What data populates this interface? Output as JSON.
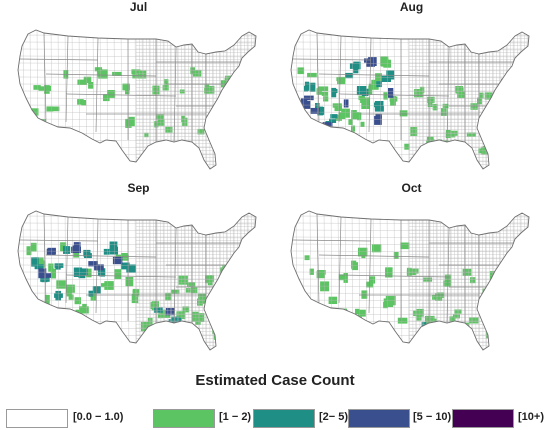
{
  "panels": [
    {
      "title": "Jul",
      "hotspots": [
        {
          "level": 1,
          "points": [
            [
              0.08,
              0.4
            ],
            [
              0.11,
              0.42
            ],
            [
              0.14,
              0.52
            ],
            [
              0.06,
              0.57
            ],
            [
              0.09,
              0.63
            ],
            [
              0.2,
              0.3
            ],
            [
              0.24,
              0.36
            ],
            [
              0.27,
              0.33
            ],
            [
              0.31,
              0.4
            ],
            [
              0.36,
              0.44
            ],
            [
              0.26,
              0.48
            ],
            [
              0.33,
              0.28
            ],
            [
              0.4,
              0.3
            ],
            [
              0.45,
              0.37
            ],
            [
              0.49,
              0.31
            ],
            [
              0.55,
              0.42
            ],
            [
              0.61,
              0.38
            ],
            [
              0.67,
              0.45
            ],
            [
              0.72,
              0.3
            ],
            [
              0.79,
              0.41
            ],
            [
              0.83,
              0.36
            ],
            [
              0.86,
              0.32
            ],
            [
              0.89,
              0.48
            ],
            [
              0.57,
              0.62
            ],
            [
              0.63,
              0.66
            ],
            [
              0.69,
              0.6
            ],
            [
              0.46,
              0.64
            ],
            [
              0.75,
              0.7
            ],
            [
              0.52,
              0.73
            ]
          ]
        }
      ]
    },
    {
      "title": "Aug",
      "hotspots": [
        {
          "level": 1,
          "points": [
            [
              0.05,
              0.26
            ],
            [
              0.09,
              0.33
            ],
            [
              0.12,
              0.4
            ],
            [
              0.15,
              0.46
            ],
            [
              0.18,
              0.52
            ],
            [
              0.2,
              0.58
            ],
            [
              0.23,
              0.63
            ],
            [
              0.27,
              0.56
            ],
            [
              0.3,
              0.48
            ],
            [
              0.33,
              0.38
            ],
            [
              0.36,
              0.3
            ],
            [
              0.38,
              0.22
            ],
            [
              0.4,
              0.45
            ],
            [
              0.25,
              0.7
            ],
            [
              0.31,
              0.66
            ],
            [
              0.21,
              0.36
            ],
            [
              0.44,
              0.56
            ],
            [
              0.53,
              0.43
            ],
            [
              0.58,
              0.5
            ],
            [
              0.63,
              0.55
            ],
            [
              0.68,
              0.42
            ],
            [
              0.74,
              0.5
            ],
            [
              0.79,
              0.46
            ],
            [
              0.85,
              0.42
            ],
            [
              0.88,
              0.36
            ],
            [
              0.91,
              0.3
            ],
            [
              0.5,
              0.7
            ],
            [
              0.56,
              0.76
            ],
            [
              0.61,
              0.8
            ],
            [
              0.66,
              0.72
            ],
            [
              0.73,
              0.75
            ],
            [
              0.79,
              0.82
            ],
            [
              0.84,
              0.88
            ],
            [
              0.89,
              0.92
            ],
            [
              0.48,
              0.81
            ]
          ]
        },
        {
          "level": 2,
          "points": [
            [
              0.07,
              0.38
            ],
            [
              0.12,
              0.53
            ],
            [
              0.18,
              0.4
            ],
            [
              0.22,
              0.31
            ],
            [
              0.26,
              0.24
            ],
            [
              0.29,
              0.42
            ],
            [
              0.34,
              0.52
            ],
            [
              0.16,
              0.62
            ],
            [
              0.37,
              0.36
            ],
            [
              0.41,
              0.32
            ]
          ]
        },
        {
          "level": 3,
          "points": [
            [
              0.06,
              0.48
            ],
            [
              0.1,
              0.58
            ],
            [
              0.14,
              0.67
            ],
            [
              0.21,
              0.47
            ],
            [
              0.31,
              0.22
            ],
            [
              0.4,
              0.4
            ],
            [
              0.36,
              0.6
            ]
          ]
        }
      ]
    },
    {
      "title": "Sep",
      "hotspots": [
        {
          "level": 1,
          "points": [
            [
              0.05,
              0.26
            ],
            [
              0.09,
              0.34
            ],
            [
              0.13,
              0.4
            ],
            [
              0.16,
              0.48
            ],
            [
              0.2,
              0.55
            ],
            [
              0.23,
              0.62
            ],
            [
              0.26,
              0.68
            ],
            [
              0.31,
              0.6
            ],
            [
              0.35,
              0.5
            ],
            [
              0.39,
              0.4
            ],
            [
              0.42,
              0.3
            ],
            [
              0.45,
              0.48
            ],
            [
              0.28,
              0.44
            ],
            [
              0.24,
              0.32
            ],
            [
              0.19,
              0.22
            ],
            [
              0.13,
              0.62
            ],
            [
              0.49,
              0.58
            ],
            [
              0.55,
              0.64
            ],
            [
              0.59,
              0.72
            ],
            [
              0.63,
              0.57
            ],
            [
              0.67,
              0.46
            ],
            [
              0.71,
              0.53
            ],
            [
              0.75,
              0.6
            ],
            [
              0.79,
              0.48
            ],
            [
              0.84,
              0.4
            ],
            [
              0.88,
              0.34
            ],
            [
              0.91,
              0.43
            ],
            [
              0.86,
              0.56
            ],
            [
              0.8,
              0.66
            ],
            [
              0.74,
              0.74
            ],
            [
              0.67,
              0.7
            ],
            [
              0.8,
              0.82
            ],
            [
              0.85,
              0.88
            ],
            [
              0.53,
              0.78
            ],
            [
              0.6,
              0.85
            ],
            [
              0.65,
              0.8
            ]
          ]
        },
        {
          "level": 2,
          "points": [
            [
              0.07,
              0.36
            ],
            [
              0.11,
              0.48
            ],
            [
              0.16,
              0.36
            ],
            [
              0.2,
              0.28
            ],
            [
              0.25,
              0.4
            ],
            [
              0.29,
              0.3
            ],
            [
              0.33,
              0.42
            ],
            [
              0.3,
              0.56
            ],
            [
              0.37,
              0.25
            ],
            [
              0.15,
              0.56
            ],
            [
              0.44,
              0.38
            ],
            [
              0.86,
              0.46
            ],
            [
              0.57,
              0.66
            ],
            [
              0.63,
              0.76
            ]
          ]
        },
        {
          "level": 3,
          "points": [
            [
              0.09,
              0.42
            ],
            [
              0.14,
              0.28
            ],
            [
              0.23,
              0.24
            ],
            [
              0.31,
              0.36
            ],
            [
              0.39,
              0.32
            ],
            [
              0.87,
              0.4
            ],
            [
              0.62,
              0.7
            ]
          ]
        }
      ]
    },
    {
      "title": "Oct",
      "hotspots": [
        {
          "level": 1,
          "points": [
            [
              0.06,
              0.33
            ],
            [
              0.1,
              0.42
            ],
            [
              0.14,
              0.52
            ],
            [
              0.17,
              0.6
            ],
            [
              0.22,
              0.45
            ],
            [
              0.26,
              0.35
            ],
            [
              0.3,
              0.28
            ],
            [
              0.34,
              0.22
            ],
            [
              0.29,
              0.55
            ],
            [
              0.33,
              0.48
            ],
            [
              0.38,
              0.4
            ],
            [
              0.42,
              0.3
            ],
            [
              0.46,
              0.22
            ],
            [
              0.2,
              0.68
            ],
            [
              0.27,
              0.72
            ],
            [
              0.5,
              0.42
            ],
            [
              0.55,
              0.5
            ],
            [
              0.6,
              0.58
            ],
            [
              0.65,
              0.48
            ],
            [
              0.7,
              0.4
            ],
            [
              0.75,
              0.48
            ],
            [
              0.8,
              0.56
            ],
            [
              0.84,
              0.44
            ],
            [
              0.88,
              0.36
            ],
            [
              0.91,
              0.28
            ],
            [
              0.52,
              0.7
            ],
            [
              0.57,
              0.76
            ],
            [
              0.62,
              0.82
            ],
            [
              0.67,
              0.72
            ],
            [
              0.73,
              0.78
            ],
            [
              0.82,
              0.86
            ],
            [
              0.87,
              0.92
            ],
            [
              0.46,
              0.78
            ],
            [
              0.4,
              0.62
            ]
          ]
        },
        {
          "level": 2,
          "points": [
            [
              0.53,
              0.76
            ]
          ]
        }
      ]
    }
  ],
  "legend": {
    "title": "Estimated Case Count",
    "items": [
      {
        "label": "[0.0 − 1.0)",
        "color": "#ffffff"
      },
      {
        "label": "[1 − 2)",
        "color": "#5dc463"
      },
      {
        "label": "[2− 5)",
        "color": "#1f8f85"
      },
      {
        "label": "[5 − 10)",
        "color": "#3a4f8e"
      },
      {
        "label": "[10+)",
        "color": "#440154"
      }
    ]
  }
}
